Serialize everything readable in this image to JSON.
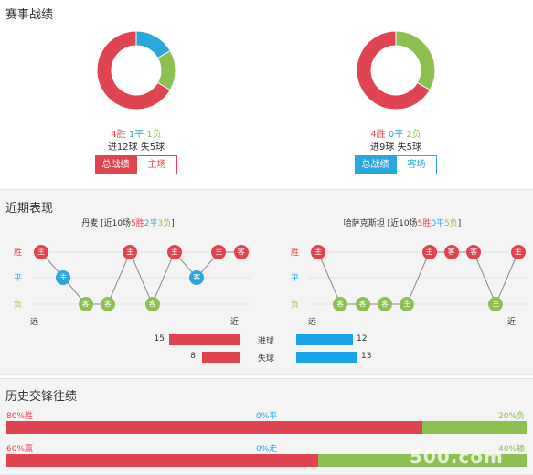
{
  "sections": {
    "record_title": "赛事战绩",
    "recent_title": "近期表现",
    "history_title": "历史交锋往绩"
  },
  "left_team": {
    "donut": {
      "win": 4,
      "draw": 1,
      "loss": 1,
      "colors": {
        "win": "#e04451",
        "draw": "#2aa7dc",
        "loss": "#8cc152"
      }
    },
    "wins_text": "4胜",
    "draws_text": "1平",
    "losses_text": "1负",
    "goals_text": "进12球 失5球",
    "btn_overall": "总战绩",
    "btn_venue": "主场"
  },
  "right_team": {
    "donut": {
      "win": 4,
      "draw": 0,
      "loss": 2,
      "colors": {
        "win": "#e04451",
        "draw": "#2aa7dc",
        "loss": "#8cc152"
      }
    },
    "wins_text": "4胜",
    "draws_text": "0平",
    "losses_text": "2负",
    "goals_text": "进9球 失5球",
    "btn_overall": "总战绩",
    "btn_venue": "客场"
  },
  "recent": {
    "left": {
      "name": "丹麦",
      "summary_prefix": "[近10场",
      "wins": "5胜",
      "draws": "2平",
      "losses": "3负",
      "summary_suffix": "]",
      "results": [
        {
          "r": "W",
          "v": "主"
        },
        {
          "r": "D",
          "v": "主"
        },
        {
          "r": "L",
          "v": "客"
        },
        {
          "r": "L",
          "v": "客"
        },
        {
          "r": "W",
          "v": "主"
        },
        {
          "r": "L",
          "v": "客"
        },
        {
          "r": "W",
          "v": "主"
        },
        {
          "r": "D",
          "v": "客"
        },
        {
          "r": "W",
          "v": "主"
        },
        {
          "r": "W",
          "v": "客"
        }
      ]
    },
    "right": {
      "name": "哈萨克斯坦",
      "summary_prefix": "[近10场",
      "wins": "5胜",
      "draws": "0平",
      "losses": "5负",
      "summary_suffix": "]",
      "results": [
        {
          "r": "W",
          "v": "主"
        },
        {
          "r": "L",
          "v": "客"
        },
        {
          "r": "L",
          "v": "客"
        },
        {
          "r": "L",
          "v": "客"
        },
        {
          "r": "L",
          "v": "主"
        },
        {
          "r": "W",
          "v": "主"
        },
        {
          "r": "W",
          "v": "客"
        },
        {
          "r": "W",
          "v": "客"
        },
        {
          "r": "L",
          "v": "主"
        },
        {
          "r": "W",
          "v": "主"
        }
      ]
    },
    "axis_win": "胜",
    "axis_draw": "平",
    "axis_loss": "负",
    "far_label": "远",
    "near_label": "近",
    "goals_for_label": "进球",
    "goals_against_label": "失球",
    "left_goals_for": "15",
    "left_goals_against": "8",
    "right_goals_for": "12",
    "right_goals_against": "13",
    "left_for_value": 15,
    "left_against_value": 8,
    "right_for_value": 12,
    "right_against_value": 13
  },
  "history": {
    "row1": {
      "left": "80%胜",
      "mid": "0%平",
      "right": "20%负",
      "left_pct": 80,
      "right_pct": 20
    },
    "row2": {
      "left": "60%赢",
      "mid": "0%走",
      "right": "40%输",
      "left_pct": 60,
      "right_pct": 40
    },
    "watermark": "500.com"
  }
}
